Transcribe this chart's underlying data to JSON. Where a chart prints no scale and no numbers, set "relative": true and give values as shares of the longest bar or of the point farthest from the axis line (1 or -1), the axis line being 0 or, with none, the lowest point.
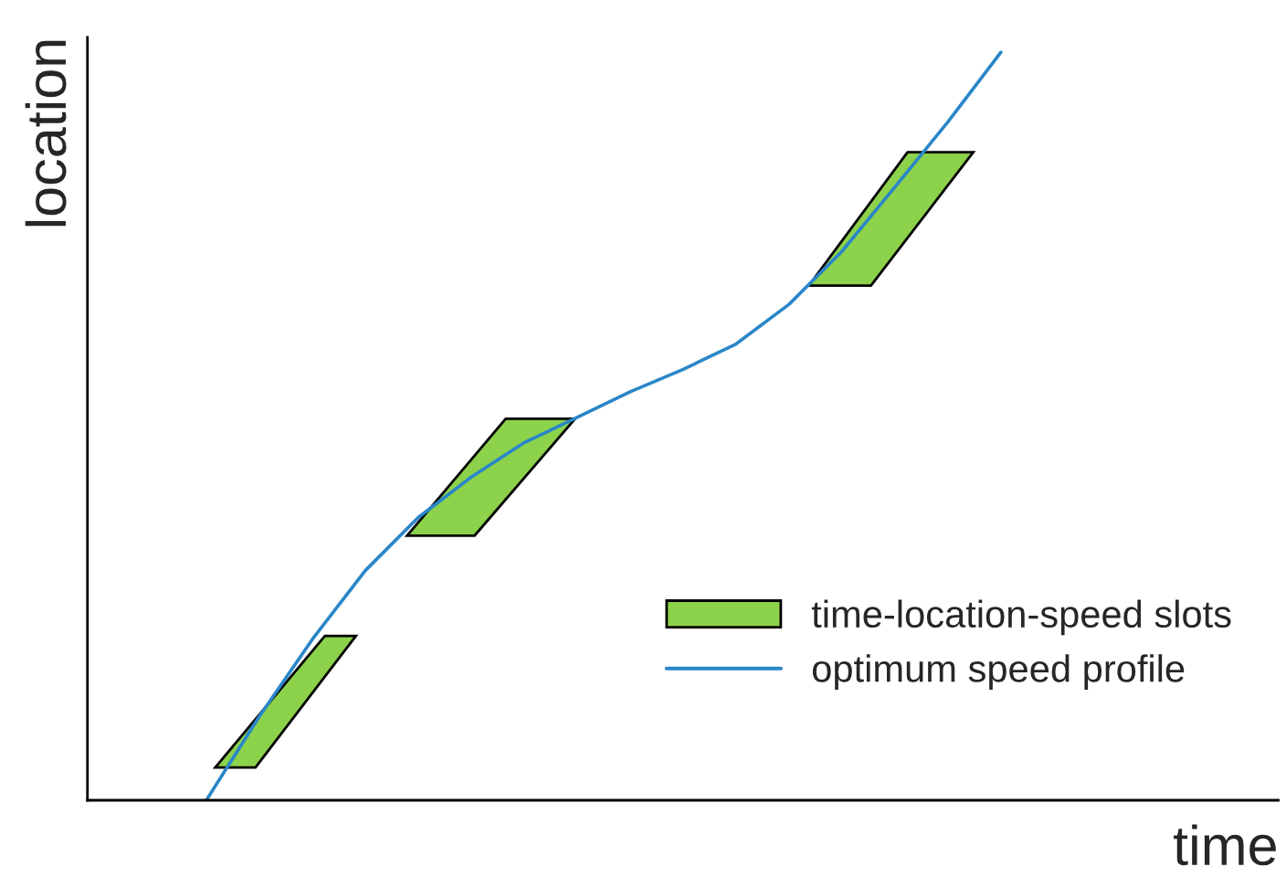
{
  "chart_data": {
    "type": "line",
    "relative": true,
    "xlabel": "time",
    "ylabel": "location",
    "legend": "bottom right",
    "annotations": [
      "time-location-speed slots"
    ],
    "categories": [
      null,
      null,
      null,
      null,
      null,
      null,
      null,
      null,
      null,
      null,
      null,
      null,
      null,
      null,
      null,
      null
    ],
    "series": [
      {
        "name": "optimum speed profile",
        "color": "#2a86c8",
        "values": [
          0,
          0.112,
          0.215,
          0.307,
          0.378,
          0.432,
          0.478,
          0.512,
          0.546,
          0.576,
          0.61,
          0.663,
          0.734,
          0.82,
          0.907,
          1.0
        ]
      }
    ]
  }
}
